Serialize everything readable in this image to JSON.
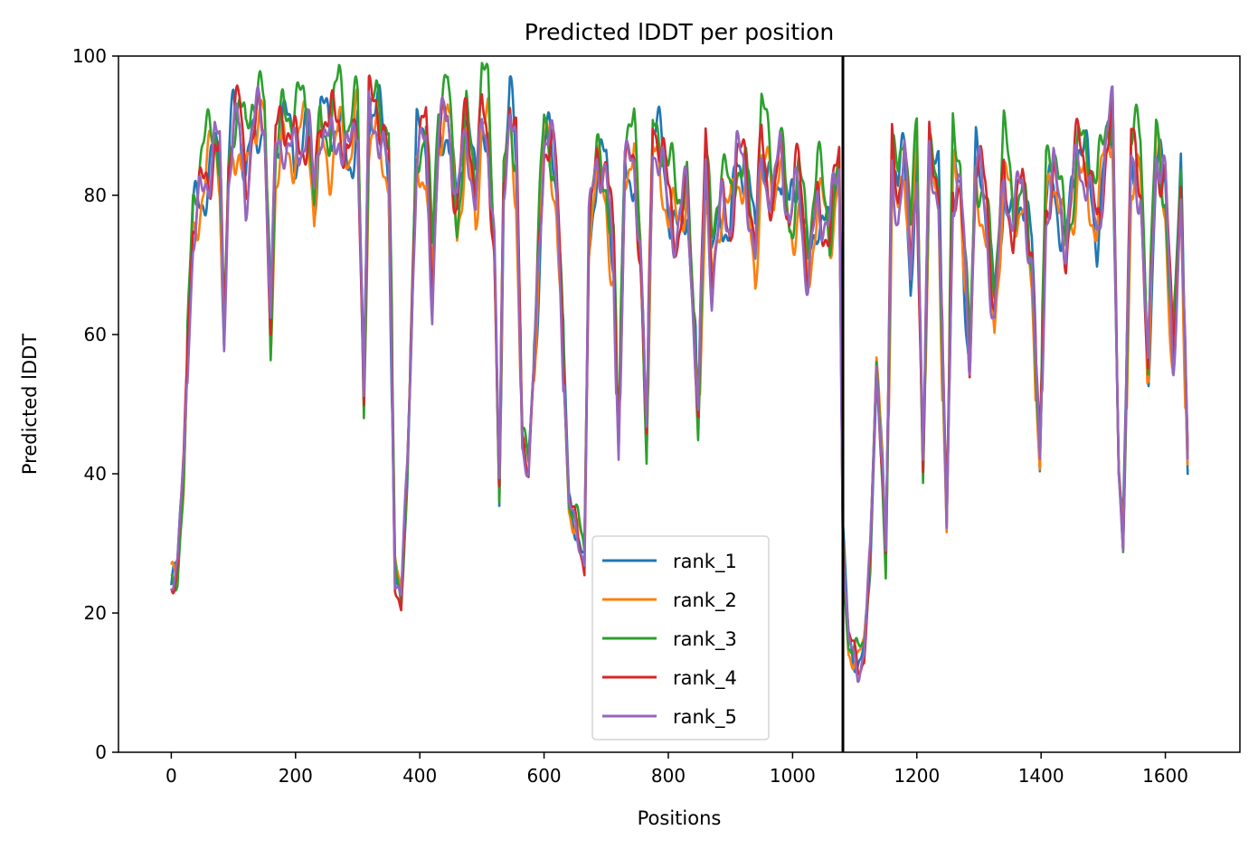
{
  "chart_data": {
    "type": "line",
    "title": "Predicted lDDT per position",
    "xlabel": "Positions",
    "ylabel": "Predicted lDDT",
    "xlim": [
      -85,
      1720
    ],
    "ylim": [
      0,
      100
    ],
    "xticks": [
      0,
      200,
      400,
      600,
      800,
      1000,
      1200,
      1400,
      1600
    ],
    "yticks": [
      0,
      20,
      40,
      60,
      80,
      100
    ],
    "grid": false,
    "legend_position": "lower-center",
    "vline_x": 1081,
    "vline_color": "#000000",
    "series": [
      {
        "name": "rank_1",
        "color": "#1f77b4"
      },
      {
        "name": "rank_2",
        "color": "#ff7f0e"
      },
      {
        "name": "rank_3",
        "color": "#2ca02c"
      },
      {
        "name": "rank_4",
        "color": "#d62728"
      },
      {
        "name": "rank_5",
        "color": "#9467bd"
      }
    ],
    "profile": [
      [
        0,
        24
      ],
      [
        10,
        26
      ],
      [
        15,
        34
      ],
      [
        20,
        40
      ],
      [
        28,
        62
      ],
      [
        35,
        76
      ],
      [
        45,
        81
      ],
      [
        60,
        84
      ],
      [
        70,
        88
      ],
      [
        78,
        84
      ],
      [
        85,
        58
      ],
      [
        92,
        82
      ],
      [
        100,
        90
      ],
      [
        110,
        91
      ],
      [
        120,
        83
      ],
      [
        130,
        90
      ],
      [
        140,
        92
      ],
      [
        150,
        90
      ],
      [
        160,
        60
      ],
      [
        168,
        85
      ],
      [
        180,
        90
      ],
      [
        200,
        88
      ],
      [
        220,
        90
      ],
      [
        230,
        78
      ],
      [
        240,
        90
      ],
      [
        255,
        88
      ],
      [
        270,
        92
      ],
      [
        285,
        86
      ],
      [
        300,
        91
      ],
      [
        310,
        50
      ],
      [
        318,
        90
      ],
      [
        330,
        92
      ],
      [
        340,
        89
      ],
      [
        350,
        85
      ],
      [
        360,
        26
      ],
      [
        370,
        22
      ],
      [
        380,
        40
      ],
      [
        395,
        86
      ],
      [
        410,
        88
      ],
      [
        420,
        68
      ],
      [
        430,
        90
      ],
      [
        445,
        92
      ],
      [
        460,
        76
      ],
      [
        475,
        90
      ],
      [
        490,
        80
      ],
      [
        500,
        93
      ],
      [
        510,
        90
      ],
      [
        520,
        72
      ],
      [
        528,
        37
      ],
      [
        535,
        80
      ],
      [
        545,
        92
      ],
      [
        555,
        85
      ],
      [
        565,
        45
      ],
      [
        575,
        42
      ],
      [
        585,
        58
      ],
      [
        600,
        88
      ],
      [
        610,
        87
      ],
      [
        620,
        80
      ],
      [
        632,
        55
      ],
      [
        640,
        36
      ],
      [
        655,
        32
      ],
      [
        665,
        28
      ],
      [
        672,
        74
      ],
      [
        685,
        84
      ],
      [
        700,
        82
      ],
      [
        712,
        70
      ],
      [
        720,
        44
      ],
      [
        730,
        86
      ],
      [
        745,
        85
      ],
      [
        755,
        72
      ],
      [
        765,
        44
      ],
      [
        775,
        88
      ],
      [
        790,
        86
      ],
      [
        800,
        80
      ],
      [
        815,
        76
      ],
      [
        830,
        80
      ],
      [
        848,
        48
      ],
      [
        860,
        85
      ],
      [
        870,
        70
      ],
      [
        885,
        80
      ],
      [
        900,
        76
      ],
      [
        910,
        84
      ],
      [
        925,
        82
      ],
      [
        940,
        72
      ],
      [
        950,
        88
      ],
      [
        960,
        84
      ],
      [
        970,
        80
      ],
      [
        980,
        86
      ],
      [
        995,
        75
      ],
      [
        1010,
        82
      ],
      [
        1025,
        70
      ],
      [
        1040,
        80
      ],
      [
        1060,
        74
      ],
      [
        1075,
        84
      ],
      [
        1081,
        30
      ],
      [
        1090,
        16
      ],
      [
        1105,
        13
      ],
      [
        1115,
        15
      ],
      [
        1125,
        28
      ],
      [
        1135,
        55
      ],
      [
        1145,
        40
      ],
      [
        1150,
        27
      ],
      [
        1160,
        84
      ],
      [
        1170,
        80
      ],
      [
        1180,
        88
      ],
      [
        1190,
        70
      ],
      [
        1200,
        86
      ],
      [
        1210,
        40
      ],
      [
        1220,
        85
      ],
      [
        1235,
        80
      ],
      [
        1248,
        33
      ],
      [
        1258,
        84
      ],
      [
        1270,
        82
      ],
      [
        1285,
        55
      ],
      [
        1295,
        84
      ],
      [
        1310,
        78
      ],
      [
        1325,
        64
      ],
      [
        1340,
        84
      ],
      [
        1355,
        76
      ],
      [
        1370,
        80
      ],
      [
        1385,
        70
      ],
      [
        1398,
        42
      ],
      [
        1408,
        80
      ],
      [
        1420,
        84
      ],
      [
        1440,
        72
      ],
      [
        1460,
        86
      ],
      [
        1475,
        84
      ],
      [
        1490,
        76
      ],
      [
        1505,
        88
      ],
      [
        1515,
        90
      ],
      [
        1525,
        40
      ],
      [
        1532,
        30
      ],
      [
        1545,
        86
      ],
      [
        1560,
        84
      ],
      [
        1572,
        55
      ],
      [
        1585,
        86
      ],
      [
        1600,
        80
      ],
      [
        1612,
        55
      ],
      [
        1625,
        82
      ],
      [
        1636,
        42
      ]
    ]
  }
}
